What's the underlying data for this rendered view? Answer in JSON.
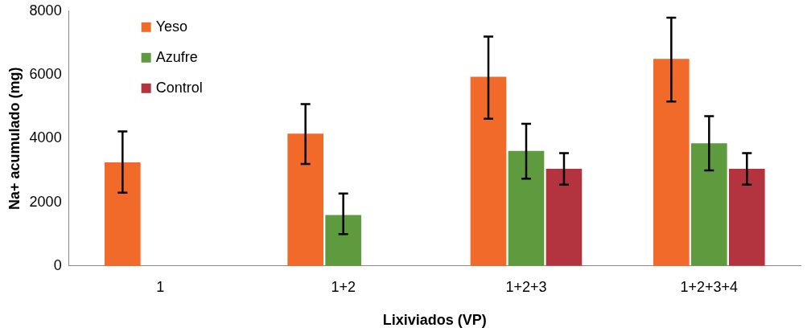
{
  "chart_data": {
    "type": "bar",
    "xlabel": "Lixiviados (VP)",
    "ylabel": "Na+ acumulado (mg)",
    "categories": [
      "1",
      "1+2",
      "1+2+3",
      "1+2+3+4"
    ],
    "series": [
      {
        "name": "Yeso",
        "color": "#f26a2a",
        "values": [
          3250,
          4150,
          5940,
          6500
        ],
        "errors": [
          [
            2300,
            4220
          ],
          [
            3200,
            5080
          ],
          [
            4620,
            7200
          ],
          [
            5160,
            7790
          ]
        ]
      },
      {
        "name": "Azufre",
        "color": "#5e9b3e",
        "values": [
          null,
          1600,
          3610,
          3850
        ],
        "errors": [
          null,
          [
            1000,
            2270
          ],
          [
            2740,
            4460
          ],
          [
            3000,
            4700
          ]
        ]
      },
      {
        "name": "Control",
        "color": "#b3343f",
        "values": [
          null,
          null,
          3050,
          3050
        ],
        "errors": [
          null,
          null,
          [
            2550,
            3540
          ],
          [
            2550,
            3540
          ]
        ]
      }
    ],
    "ylim": [
      0,
      8000
    ],
    "yticks": [
      0,
      2000,
      4000,
      6000,
      8000
    ],
    "grid": false,
    "legend": "top left",
    "marker": "square"
  }
}
